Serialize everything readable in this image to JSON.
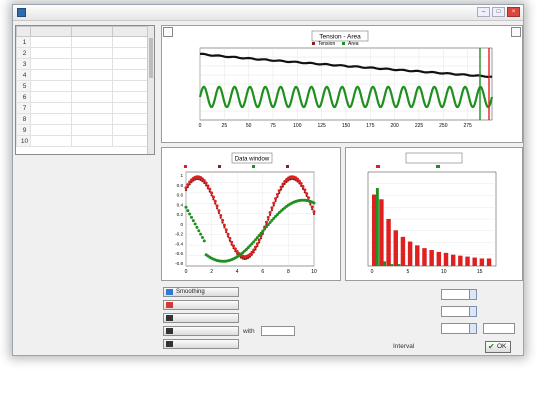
{
  "window": {
    "title": ""
  },
  "table": {
    "columns": [
      "",
      "",
      "",
      ""
    ],
    "rows": [
      [
        "1",
        "",
        "",
        ""
      ],
      [
        "2",
        "",
        "",
        ""
      ],
      [
        "3",
        "",
        "",
        ""
      ],
      [
        "4",
        "",
        "",
        ""
      ],
      [
        "5",
        "",
        "",
        ""
      ],
      [
        "6",
        "",
        "",
        ""
      ],
      [
        "7",
        "",
        "",
        ""
      ],
      [
        "8",
        "",
        "",
        ""
      ],
      [
        "9",
        "",
        "",
        ""
      ],
      [
        "10",
        "",
        "",
        ""
      ]
    ]
  },
  "params": [
    {
      "label": "",
      "value": ""
    },
    {
      "label": "",
      "value": ""
    },
    {
      "label": "",
      "value": ""
    },
    {
      "label": "",
      "value": ""
    },
    {
      "label": "",
      "value": ""
    },
    {
      "label": "",
      "value": ""
    },
    {
      "label": "",
      "value": ""
    },
    {
      "label": "",
      "value": ""
    }
  ],
  "buttons": {
    "b1": "Smoothing",
    "b2": "",
    "b3": "",
    "b4": "",
    "b5": "",
    "with_label": "with",
    "with_value": ""
  },
  "form": {
    "f1_label": "",
    "f1_value": "",
    "f2_label": "",
    "f2_value": "",
    "f3_label": "",
    "f3_value": "",
    "f4_label": "Interval",
    "f4_value": "",
    "ok": "OK"
  },
  "caption": "",
  "colors": {
    "green": "#1f8f1f",
    "black": "#111111",
    "red": "#e02020",
    "darkred": "#8b1e1e"
  },
  "chart_data": [
    {
      "type": "line",
      "title": "Tension - Area",
      "legend": [
        "Tension",
        "Area"
      ],
      "xlabel": "",
      "ylabel_left": "",
      "ylabel_right": "",
      "xlim": [
        0,
        300
      ],
      "x_ticks": [
        0,
        25,
        50,
        75,
        100,
        125,
        150,
        175,
        200,
        225,
        250,
        275
      ],
      "y_left_ticks": [
        "",
        "",
        "",
        "",
        "",
        "",
        "",
        ""
      ],
      "y_right_ticks": [
        "",
        "",
        "",
        "",
        "",
        "",
        "",
        ""
      ],
      "series": [
        {
          "name": "Tension",
          "shape": "black decaying trend",
          "start": 0.92,
          "end": 0.6
        },
        {
          "name": "Area",
          "shape": "green oscillating band",
          "center": 0.32,
          "amplitude": 0.14,
          "cycles": 19
        }
      ],
      "grid": true,
      "legend_position": "top"
    },
    {
      "type": "scatter",
      "title": "Data window",
      "legend": [
        "",
        "",
        "",
        ""
      ],
      "xlim": [
        0,
        10
      ],
      "x_ticks": [
        0,
        2,
        4,
        6,
        8,
        10
      ],
      "y_left_ticks": [
        "1",
        "0.8",
        "0.6",
        "0.4",
        "0.2",
        "0",
        "-0.2",
        "-0.4",
        "-0.6",
        "-0.8"
      ],
      "y_right_ticks": [
        "",
        "",
        "",
        "",
        "",
        "",
        "",
        "",
        ""
      ],
      "series": [
        {
          "name": "",
          "shape": "red sine, peak near x=0.8 then trough near x=3.5 then peak near x=8"
        },
        {
          "name": "",
          "shape": "green wave, trough near x=2.8 then rise to peak near x=9"
        }
      ],
      "grid": true,
      "legend_position": "top"
    },
    {
      "type": "bar",
      "title": "",
      "legend": [
        "",
        ""
      ],
      "xlabel": "",
      "ylabel_left": "",
      "ylabel_right": "",
      "categories": [
        1,
        2,
        3,
        4,
        5,
        6,
        7,
        8,
        9,
        10,
        11,
        12,
        13,
        14,
        15,
        16,
        17
      ],
      "values": [
        0.76,
        0.71,
        0.5,
        0.38,
        0.31,
        0.26,
        0.22,
        0.19,
        0.17,
        0.15,
        0.14,
        0.12,
        0.11,
        0.1,
        0.09,
        0.08,
        0.08
      ],
      "green_values": [
        0.83,
        0.05,
        0.02,
        0.02,
        0.01
      ],
      "x_ticks": [
        0,
        5,
        10,
        15
      ],
      "y_left_ticks": [
        "",
        "",
        "",
        "",
        "",
        "",
        "",
        ""
      ],
      "y_right_ticks": [
        "",
        "",
        "",
        "",
        "",
        "",
        "",
        ""
      ],
      "grid": true,
      "legend_position": "top"
    }
  ]
}
